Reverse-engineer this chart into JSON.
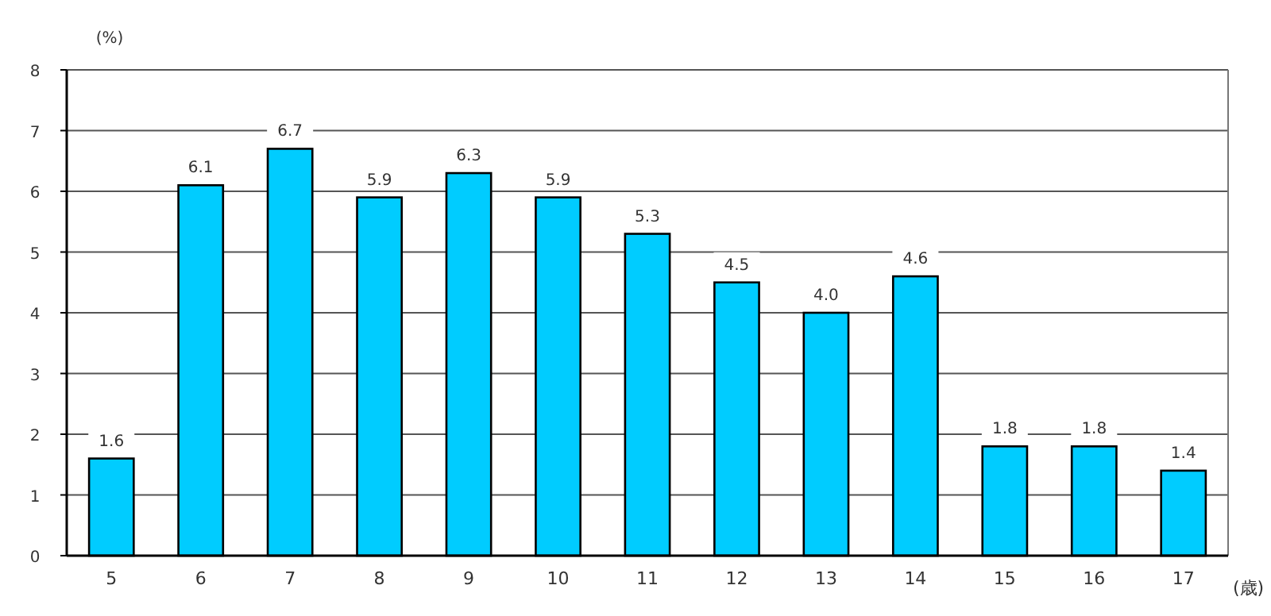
{
  "chart_data": {
    "type": "bar",
    "xlabel": "(歳)",
    "ylabel": "(%)",
    "categories": [
      "5",
      "6",
      "7",
      "8",
      "9",
      "10",
      "11",
      "12",
      "13",
      "14",
      "15",
      "16",
      "17"
    ],
    "values": [
      1.6,
      6.1,
      6.7,
      5.9,
      6.3,
      5.9,
      5.3,
      4.5,
      4.0,
      4.6,
      1.8,
      1.8,
      1.4
    ],
    "value_labels": [
      "1.6",
      "6.1",
      "6.7",
      "5.9",
      "6.3",
      "5.9",
      "5.3",
      "4.5",
      "4.0",
      "4.6",
      "1.8",
      "1.8",
      "1.4"
    ],
    "color": "#00ccff",
    "ylim": [
      0,
      8
    ],
    "yticks": [
      0,
      1,
      2,
      3,
      4,
      5,
      6,
      7,
      8
    ],
    "grid": "y"
  }
}
